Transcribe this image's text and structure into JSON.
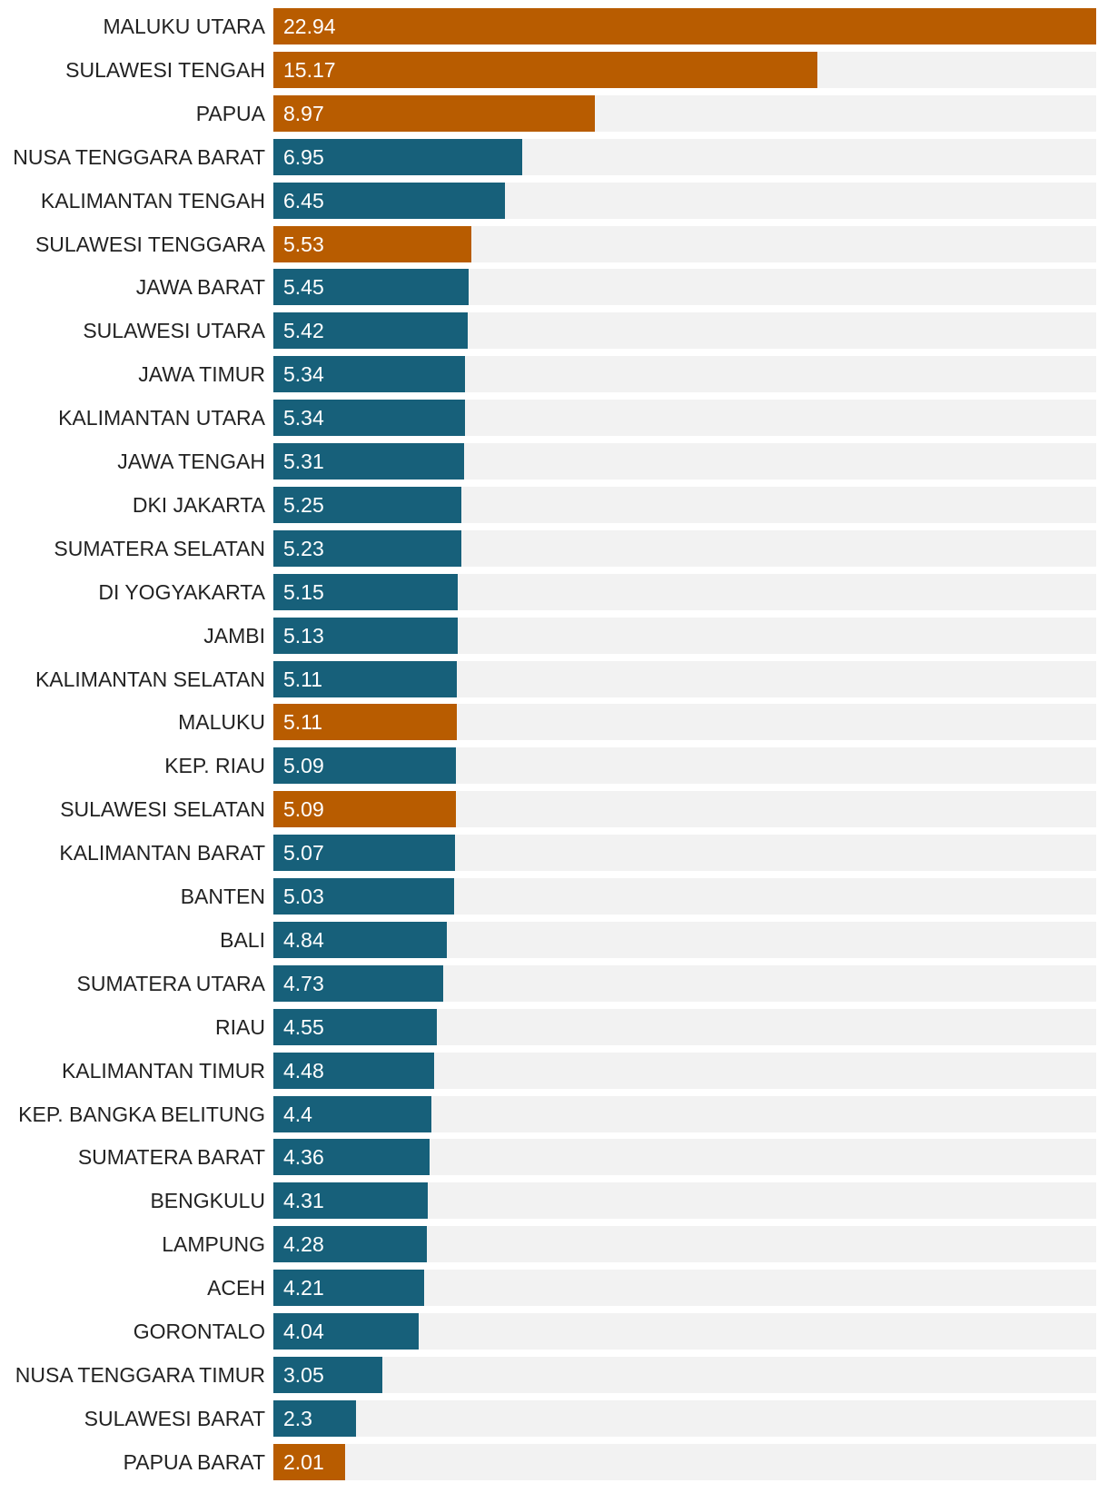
{
  "chart_data": {
    "type": "bar",
    "orientation": "horizontal",
    "title": "",
    "xlabel": "",
    "ylabel": "",
    "xlim": [
      0,
      22.94
    ],
    "grid": false,
    "legend": "none",
    "colors": {
      "highlight": "#b85c00",
      "default": "#17607a",
      "track": "#f2f2f2"
    },
    "categories": [
      "MALUKU UTARA",
      "SULAWESI TENGAH",
      "PAPUA",
      "NUSA TENGGARA BARAT",
      "KALIMANTAN TENGAH",
      "SULAWESI TENGGARA",
      "JAWA BARAT",
      "SULAWESI UTARA",
      "JAWA TIMUR",
      "KALIMANTAN UTARA",
      "JAWA TENGAH",
      "DKI JAKARTA",
      "SUMATERA SELATAN",
      "DI YOGYAKARTA",
      "JAMBI",
      "KALIMANTAN SELATAN",
      "MALUKU",
      "KEP. RIAU",
      "SULAWESI SELATAN",
      "KALIMANTAN BARAT",
      "BANTEN",
      "BALI",
      "SUMATERA UTARA",
      "RIAU",
      "KALIMANTAN TIMUR",
      "KEP. BANGKA BELITUNG",
      "SUMATERA BARAT",
      "BENGKULU",
      "LAMPUNG",
      "ACEH",
      "GORONTALO",
      "NUSA TENGGARA TIMUR",
      "SULAWESI BARAT",
      "PAPUA BARAT"
    ],
    "values": [
      22.94,
      15.17,
      8.97,
      6.95,
      6.45,
      5.53,
      5.45,
      5.42,
      5.34,
      5.34,
      5.31,
      5.25,
      5.23,
      5.15,
      5.13,
      5.11,
      5.11,
      5.09,
      5.09,
      5.07,
      5.03,
      4.84,
      4.73,
      4.55,
      4.48,
      4.4,
      4.36,
      4.31,
      4.28,
      4.21,
      4.04,
      3.05,
      2.3,
      2.01
    ],
    "value_labels": [
      "22.94",
      "15.17",
      "8.97",
      "6.95",
      "6.45",
      "5.53",
      "5.45",
      "5.42",
      "5.34",
      "5.34",
      "5.31",
      "5.25",
      "5.23",
      "5.15",
      "5.13",
      "5.11",
      "5.11",
      "5.09",
      "5.09",
      "5.07",
      "5.03",
      "4.84",
      "4.73",
      "4.55",
      "4.48",
      "4.4",
      "4.36",
      "4.31",
      "4.28",
      "4.21",
      "4.04",
      "3.05",
      "2.3",
      "2.01"
    ],
    "highlighted": [
      true,
      true,
      true,
      false,
      false,
      true,
      false,
      false,
      false,
      false,
      false,
      false,
      false,
      false,
      false,
      false,
      true,
      false,
      true,
      false,
      false,
      false,
      false,
      false,
      false,
      false,
      false,
      false,
      false,
      false,
      false,
      false,
      false,
      true
    ]
  }
}
